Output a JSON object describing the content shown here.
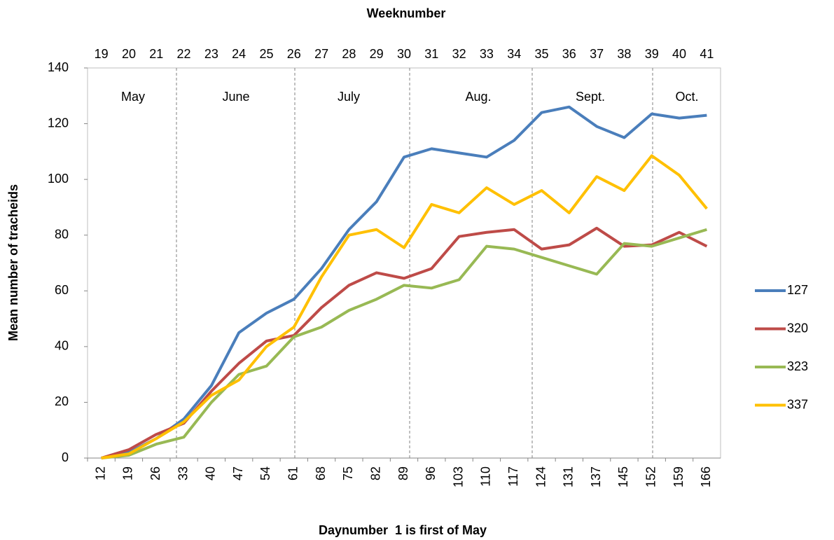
{
  "chart_data": {
    "type": "line",
    "title": "Weeknumber",
    "x_label": "Daynumber  1 is first of May",
    "y_label": "Mean number of tracheids",
    "categories": [
      12,
      19,
      26,
      33,
      40,
      47,
      54,
      61,
      68,
      75,
      82,
      89,
      96,
      103,
      110,
      117,
      124,
      131,
      137,
      145,
      152,
      159,
      166
    ],
    "top_categories": [
      19,
      20,
      21,
      22,
      23,
      24,
      25,
      26,
      27,
      28,
      29,
      30,
      31,
      32,
      33,
      34,
      35,
      36,
      37,
      38,
      39,
      40,
      41
    ],
    "months": [
      "May",
      "June",
      "July",
      "Aug.",
      "Sept.",
      "Oct."
    ],
    "ylim": [
      0,
      140
    ],
    "yticks": [
      0,
      20,
      40,
      60,
      80,
      100,
      120,
      140
    ],
    "legend": "right",
    "series": [
      {
        "name": "127",
        "color": "#4a7ebb",
        "values": [
          0,
          2,
          7,
          14,
          26,
          45,
          52,
          57,
          68,
          82,
          92,
          108,
          111,
          109.5,
          108,
          114,
          124,
          126,
          119,
          115,
          123.5,
          122,
          123
        ]
      },
      {
        "name": "320",
        "color": "#be4b48",
        "values": [
          0,
          3,
          8.5,
          12.5,
          24,
          34,
          42,
          44,
          54,
          62,
          66.5,
          64.5,
          68,
          79.5,
          81,
          82,
          75,
          76.5,
          82.5,
          76,
          76.5,
          81,
          76
        ]
      },
      {
        "name": "323",
        "color": "#98b954",
        "values": [
          0,
          1,
          5,
          7.5,
          20,
          30,
          33,
          43.5,
          47,
          53,
          57,
          62,
          61,
          64,
          76,
          75,
          72,
          69,
          66,
          77,
          76,
          79,
          82
        ]
      },
      {
        "name": "337",
        "color": "#ffc000",
        "values": [
          0,
          1.5,
          7,
          13,
          22.5,
          28,
          40,
          47,
          65,
          80,
          82,
          75.5,
          91,
          88,
          97,
          91,
          96,
          88,
          101,
          96,
          108.5,
          101.5,
          89.5
        ]
      }
    ]
  }
}
